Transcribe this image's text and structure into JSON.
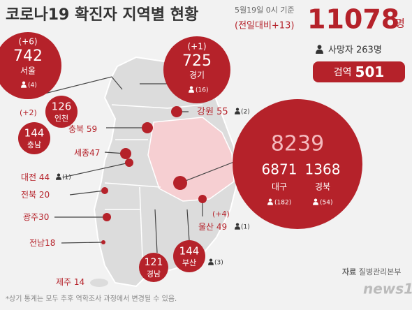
{
  "header": {
    "title": "코로나19 확진자 지역별 현황",
    "date": "5월19일 0시 기준",
    "change": "(전일대비+13)",
    "total": "11078",
    "unit": "명",
    "deaths": "사망자 263명",
    "quarantine_label": "검역",
    "quarantine_count": "501"
  },
  "daegu_gyeongbuk": {
    "total": "8239",
    "daegu": {
      "count": "6871",
      "name": "대구",
      "deaths": "(182)"
    },
    "gyeongbuk": {
      "count": "1368",
      "name": "경북",
      "deaths": "(54)"
    }
  },
  "regions": [
    {
      "name": "서울",
      "count": "742",
      "change": "(+6)",
      "deaths": "(4)"
    },
    {
      "name": "경기",
      "count": "725",
      "change": "(+1)",
      "deaths": "(16)"
    },
    {
      "name": "인천",
      "count": "126",
      "change": "(+2)"
    },
    {
      "name": "강원",
      "count": "55",
      "deaths": "(2)"
    },
    {
      "name": "충북",
      "count": "59"
    },
    {
      "name": "충남",
      "count": "144"
    },
    {
      "name": "세종",
      "count": "47"
    },
    {
      "name": "대전",
      "count": "44",
      "deaths": "(1)"
    },
    {
      "name": "전북",
      "count": "20"
    },
    {
      "name": "광주",
      "count": "30"
    },
    {
      "name": "전남",
      "count": "18"
    },
    {
      "name": "제주",
      "count": "14"
    },
    {
      "name": "경남",
      "count": "121"
    },
    {
      "name": "부산",
      "count": "144",
      "deaths": "(3)"
    },
    {
      "name": "울산",
      "count": "49",
      "change": "(+4)",
      "deaths": "(1)"
    }
  ],
  "source_label": "자료",
  "source": "질병관리본부",
  "footnote": "*상기 통계는 모두 추후 역학조사 과정에서 변경될 수 있음.",
  "logo": "news1"
}
